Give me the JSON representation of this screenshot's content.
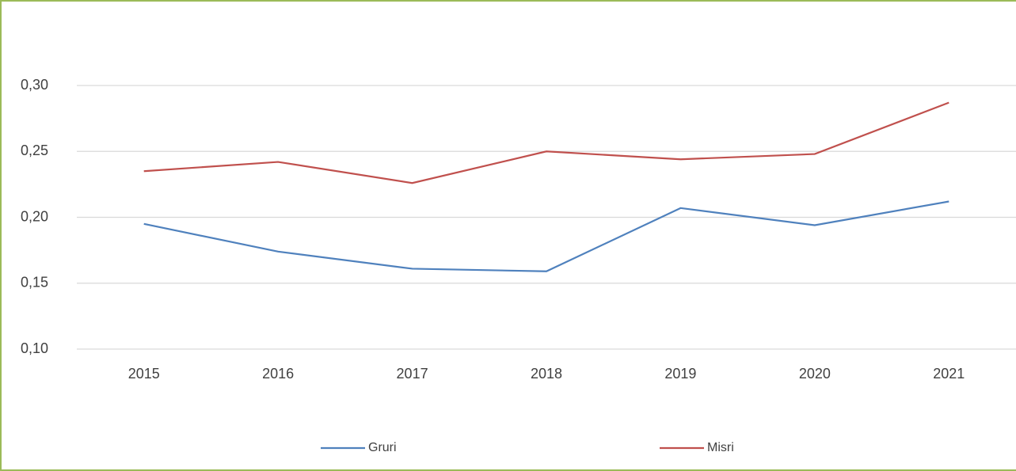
{
  "chart_data": {
    "type": "line",
    "categories": [
      "2015",
      "2016",
      "2017",
      "2018",
      "2019",
      "2020",
      "2021"
    ],
    "series": [
      {
        "name": "Gruri",
        "color": "#4f81bd",
        "values": [
          0.195,
          0.174,
          0.161,
          0.159,
          0.207,
          0.194,
          0.212
        ]
      },
      {
        "name": "Misri",
        "color": "#c0504d",
        "values": [
          0.235,
          0.242,
          0.226,
          0.25,
          0.244,
          0.248,
          0.287
        ]
      }
    ],
    "ylim": [
      0.1,
      0.3
    ],
    "yticks": [
      {
        "value": 0.1,
        "label": "0,10"
      },
      {
        "value": 0.15,
        "label": "0,15"
      },
      {
        "value": 0.2,
        "label": "0,20"
      },
      {
        "value": 0.25,
        "label": "0,25"
      },
      {
        "value": 0.3,
        "label": "0,30"
      }
    ],
    "grid": true,
    "legend": "bottom"
  }
}
